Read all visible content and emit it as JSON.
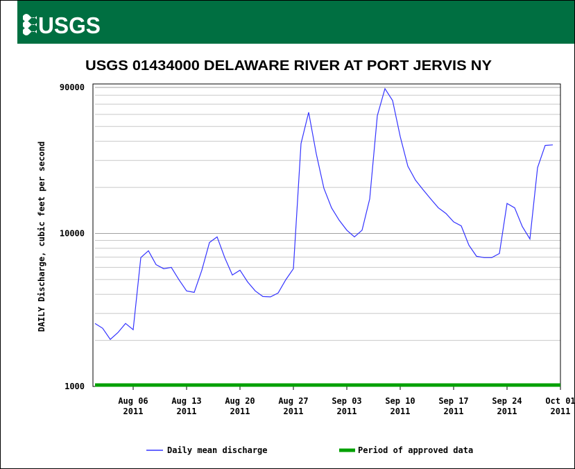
{
  "logo": "USGS",
  "chart_data": {
    "type": "line",
    "title": "USGS 01434000 DELAWARE RIVER AT PORT JERVIS NY",
    "y_label": "DAILY Discharge, cubic feet per second",
    "log_scale_y": true,
    "grid": true,
    "x": [
      "2011-08-01",
      "2011-08-02",
      "2011-08-03",
      "2011-08-04",
      "2011-08-05",
      "2011-08-06",
      "2011-08-07",
      "2011-08-08",
      "2011-08-09",
      "2011-08-10",
      "2011-08-11",
      "2011-08-12",
      "2011-08-13",
      "2011-08-14",
      "2011-08-15",
      "2011-08-16",
      "2011-08-17",
      "2011-08-18",
      "2011-08-19",
      "2011-08-20",
      "2011-08-21",
      "2011-08-22",
      "2011-08-23",
      "2011-08-24",
      "2011-08-25",
      "2011-08-26",
      "2011-08-27",
      "2011-08-28",
      "2011-08-29",
      "2011-08-30",
      "2011-08-31",
      "2011-09-01",
      "2011-09-02",
      "2011-09-03",
      "2011-09-04",
      "2011-09-05",
      "2011-09-06",
      "2011-09-07",
      "2011-09-08",
      "2011-09-09",
      "2011-09-10",
      "2011-09-11",
      "2011-09-12",
      "2011-09-13",
      "2011-09-14",
      "2011-09-15",
      "2011-09-16",
      "2011-09-17",
      "2011-09-18",
      "2011-09-19",
      "2011-09-20",
      "2011-09-21",
      "2011-09-22",
      "2011-09-23",
      "2011-09-24",
      "2011-09-25",
      "2011-09-26",
      "2011-09-27",
      "2011-09-28",
      "2011-09-29",
      "2011-09-30"
    ],
    "series": [
      {
        "name": "Daily mean discharge",
        "color": "#3333ff",
        "values": [
          2580,
          2400,
          2030,
          2250,
          2580,
          2350,
          6950,
          7700,
          6250,
          5880,
          6000,
          4980,
          4210,
          4120,
          5750,
          8730,
          9490,
          6950,
          5350,
          5750,
          4820,
          4210,
          3870,
          3850,
          4080,
          4980,
          5880,
          38700,
          61900,
          33100,
          19700,
          14700,
          12200,
          10500,
          9490,
          10500,
          16800,
          58800,
          88300,
          73900,
          43000,
          27500,
          22300,
          19300,
          16800,
          14700,
          13500,
          11900,
          11200,
          8380,
          7090,
          6950,
          6950,
          7390,
          15700,
          14700,
          11100,
          9200,
          26900,
          37600,
          37900
        ]
      }
    ],
    "approved_period": {
      "name": "Period of approved data",
      "color": "#00a000",
      "start": "2011-08-01",
      "end": "2011-10-01"
    },
    "xlim": [
      "2011-08-01",
      "2011-10-01"
    ],
    "xticks": [
      {
        "value": "2011-08-06",
        "label": "Aug 06\n2011"
      },
      {
        "value": "2011-08-13",
        "label": "Aug 13\n2011"
      },
      {
        "value": "2011-08-20",
        "label": "Aug 20\n2011"
      },
      {
        "value": "2011-08-27",
        "label": "Aug 27\n2011"
      },
      {
        "value": "2011-09-03",
        "label": "Sep 03\n2011"
      },
      {
        "value": "2011-09-10",
        "label": "Sep 10\n2011"
      },
      {
        "value": "2011-09-17",
        "label": "Sep 17\n2011"
      },
      {
        "value": "2011-09-24",
        "label": "Sep 24\n2011"
      },
      {
        "value": "2011-10-01",
        "label": "Oct 01\n2011"
      }
    ],
    "ylim": [
      1000,
      90000
    ],
    "yticks": [
      1000,
      10000,
      90000
    ],
    "yticks_minor": [
      2000,
      3000,
      4000,
      5000,
      6000,
      7000,
      8000,
      9000,
      20000,
      30000,
      40000,
      50000,
      60000,
      70000,
      80000
    ]
  }
}
